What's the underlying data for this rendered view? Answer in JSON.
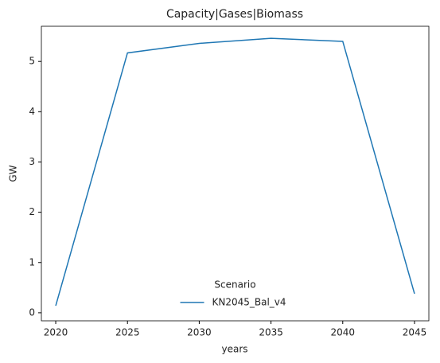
{
  "chart_data": {
    "type": "line",
    "title": "Capacity|Gases|Biomass",
    "x_label": "years",
    "y_label": "GW",
    "x": [
      2020,
      2025,
      2030,
      2035,
      2040,
      2045
    ],
    "series": [
      {
        "name": "KN2045_Bal_v4",
        "color": "#1f77b4",
        "values": [
          0.14,
          5.17,
          5.36,
          5.46,
          5.4,
          0.38
        ]
      }
    ],
    "xlim": [
      2019,
      2046
    ],
    "xticks": [
      2020,
      2025,
      2030,
      2035,
      2040,
      2045
    ],
    "ylim": [
      -0.16,
      5.7
    ],
    "yticks": [
      0,
      1,
      2,
      3,
      4,
      5
    ],
    "grid": false,
    "legend_title": "Scenario",
    "legend_position": "lower center"
  }
}
